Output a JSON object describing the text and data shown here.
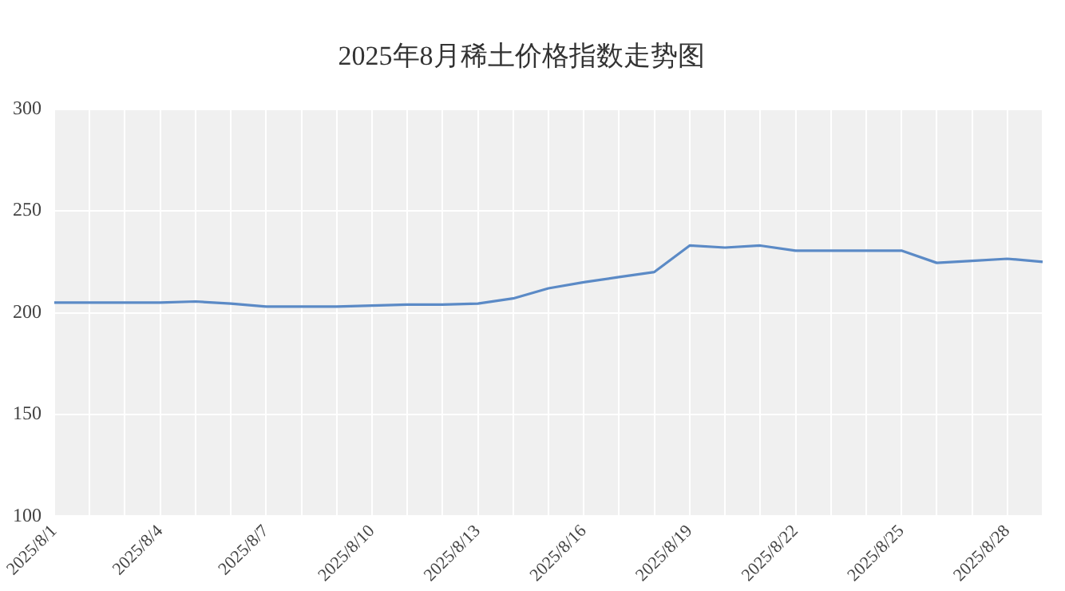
{
  "chart_data": {
    "type": "line",
    "title": "2025年8月稀土价格指数走势图",
    "categories": [
      "2025/8/1",
      null,
      null,
      "2025/8/4",
      null,
      null,
      "2025/8/7",
      null,
      null,
      "2025/8/10",
      null,
      null,
      "2025/8/13",
      null,
      null,
      "2025/8/16",
      null,
      null,
      "2025/8/19",
      null,
      null,
      "2025/8/22",
      null,
      null,
      "2025/8/25",
      null,
      null,
      "2025/8/28",
      null
    ],
    "series": [
      {
        "color": "#5b8ac6",
        "values": [
          205,
          205,
          205,
          205,
          205.5,
          204.5,
          203,
          203,
          203,
          203.5,
          204,
          204,
          204.5,
          207,
          212,
          215,
          217.5,
          220,
          233,
          232,
          233,
          230.5,
          230.5,
          230.5,
          230.5,
          224.5,
          225.5,
          226.5,
          225
        ]
      }
    ],
    "ylim": [
      100,
      300
    ],
    "yticks": [
      100,
      150,
      200,
      250,
      300
    ],
    "grid": true,
    "legend": false,
    "marker": "none",
    "line_style": "solid"
  }
}
